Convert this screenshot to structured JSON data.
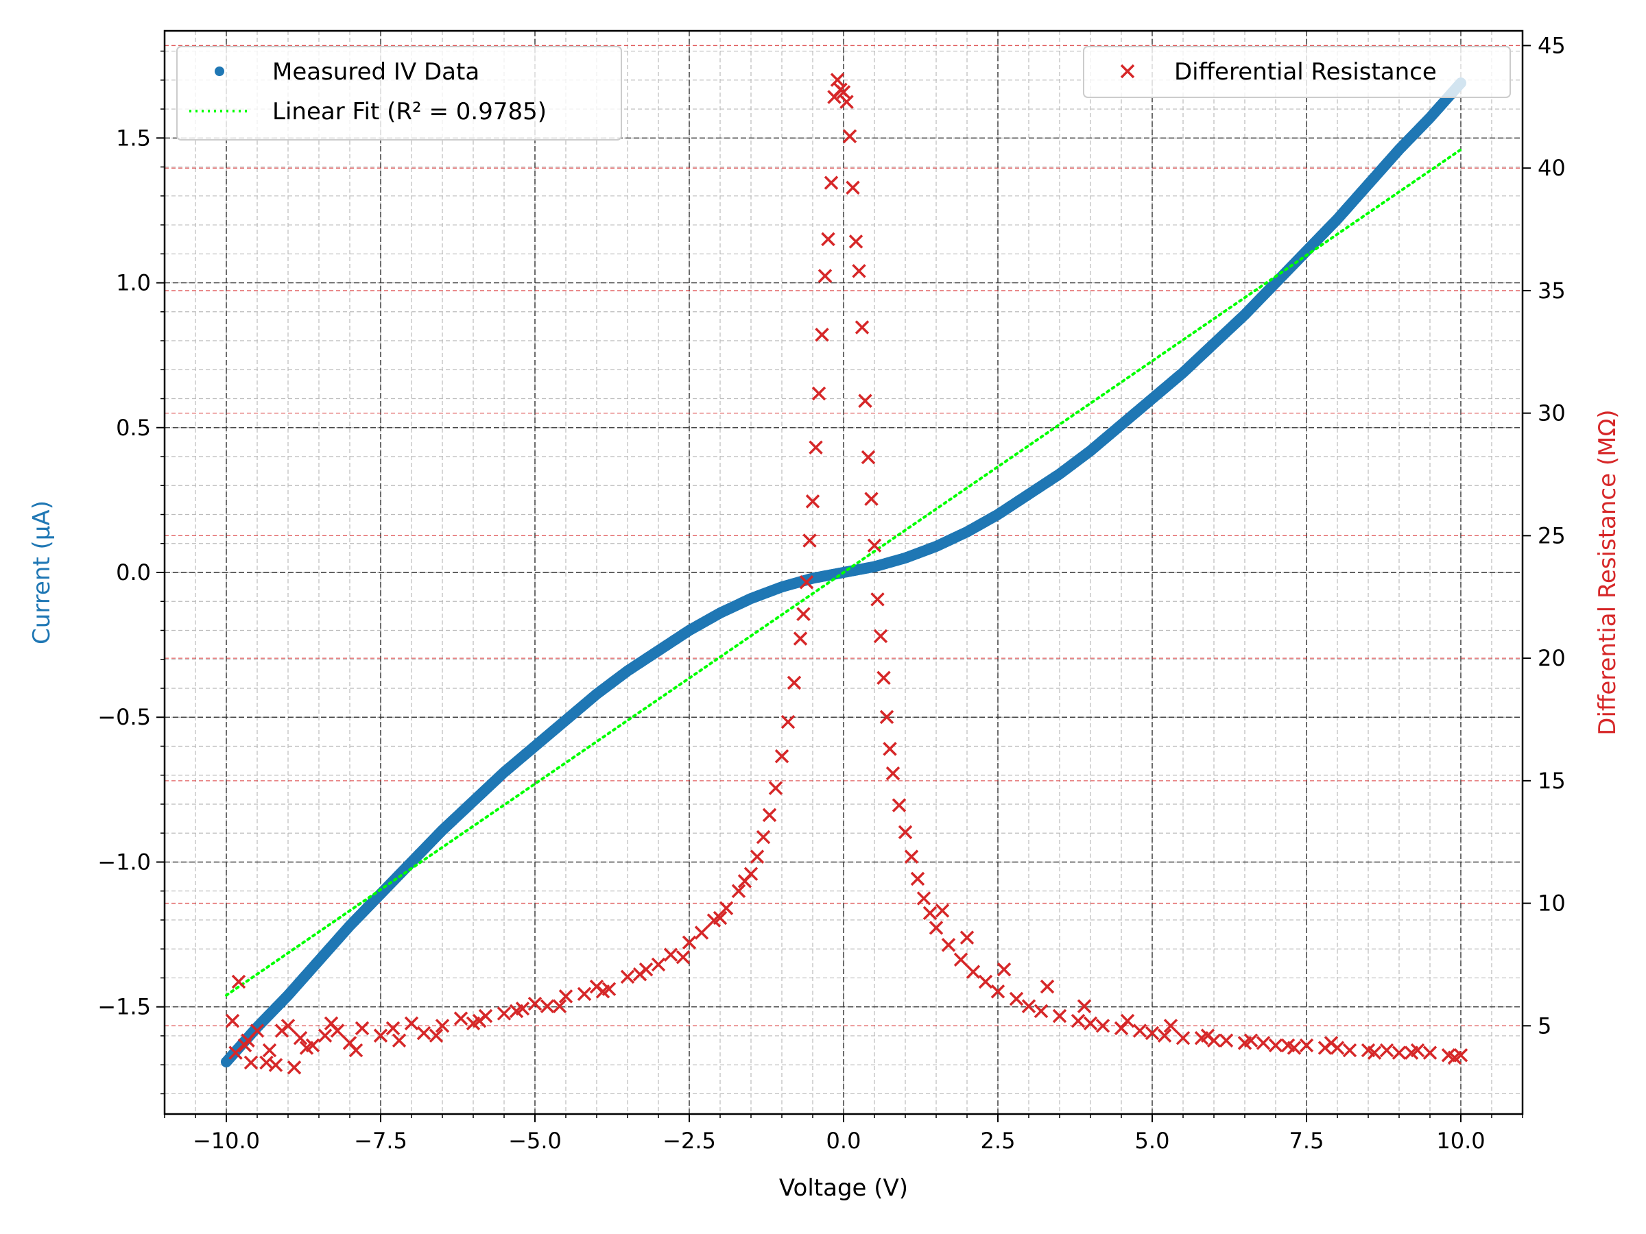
{
  "chart_data": {
    "type": "scatter",
    "xlabel": "Voltage (V)",
    "ylabel_left": "Current (μA)",
    "ylabel_right": "Differential Resistance (MΩ)",
    "xlim": [
      -11.0,
      11.0
    ],
    "ylim_left": [
      -1.87,
      1.87
    ],
    "ylim_right": [
      1.4,
      45.6
    ],
    "x_ticks": [
      -10.0,
      -7.5,
      -5.0,
      -2.5,
      0.0,
      2.5,
      5.0,
      7.5,
      10.0
    ],
    "x_tick_labels": [
      "−10.0",
      "−7.5",
      "−5.0",
      "−2.5",
      "0.0",
      "2.5",
      "5.0",
      "7.5",
      "10.0"
    ],
    "y_left_ticks": [
      -1.5,
      -1.0,
      -0.5,
      0.0,
      0.5,
      1.0,
      1.5
    ],
    "y_left_tick_labels": [
      "−1.5",
      "−1.0",
      "−0.5",
      "0.0",
      "0.5",
      "1.0",
      "1.5"
    ],
    "y_right_ticks": [
      5,
      10,
      15,
      20,
      25,
      30,
      35,
      40,
      45
    ],
    "y_right_tick_labels": [
      "5",
      "10",
      "15",
      "20",
      "25",
      "30",
      "35",
      "40",
      "45"
    ],
    "grid": true,
    "legend_left_position": "upper-left",
    "legend_right_position": "upper-right",
    "legend_labels": {
      "measured": "Measured IV Data",
      "fit": "Linear Fit (R² = 0.9785)",
      "resistance": "Differential Resistance"
    },
    "colors": {
      "left_axis": "#1f77b4",
      "right_axis": "#d62728",
      "measured": "#1f77b4",
      "fit": "#00ff00",
      "resistance": "#d62728"
    },
    "series": [
      {
        "name": "Measured IV Data",
        "axis": "left",
        "marker": "dot",
        "x": [
          -10.0,
          -9.5,
          -9.0,
          -8.5,
          -8.0,
          -7.5,
          -7.0,
          -6.5,
          -6.0,
          -5.5,
          -5.0,
          -4.5,
          -4.0,
          -3.5,
          -3.0,
          -2.5,
          -2.0,
          -1.5,
          -1.0,
          -0.5,
          0.0,
          0.5,
          1.0,
          1.5,
          2.0,
          2.5,
          3.0,
          3.5,
          4.0,
          4.5,
          5.0,
          5.5,
          6.0,
          6.5,
          7.0,
          7.5,
          8.0,
          8.5,
          9.0,
          9.5,
          10.0
        ],
        "y": [
          -1.69,
          -1.57,
          -1.46,
          -1.34,
          -1.22,
          -1.11,
          -1.0,
          -0.89,
          -0.79,
          -0.69,
          -0.6,
          -0.51,
          -0.42,
          -0.34,
          -0.27,
          -0.2,
          -0.14,
          -0.09,
          -0.05,
          -0.02,
          0.0,
          0.02,
          0.05,
          0.09,
          0.14,
          0.2,
          0.27,
          0.34,
          0.42,
          0.51,
          0.6,
          0.69,
          0.79,
          0.89,
          1.0,
          1.11,
          1.22,
          1.34,
          1.46,
          1.57,
          1.69
        ]
      },
      {
        "name": "Linear Fit (R² = 0.9785)",
        "axis": "left",
        "marker": "dotted-line",
        "x": [
          -10.0,
          10.0
        ],
        "y": [
          -1.46,
          1.46
        ]
      },
      {
        "name": "Differential Resistance",
        "axis": "right",
        "marker": "x",
        "x": [
          -9.9,
          -9.8,
          -9.7,
          -9.6,
          -9.5,
          -9.3,
          -9.2,
          -9.0,
          -8.8,
          -8.6,
          -8.4,
          -8.2,
          -8.0,
          -7.8,
          -7.5,
          -7.2,
          -7.0,
          -6.8,
          -6.5,
          -6.2,
          -6.0,
          -5.8,
          -5.5,
          -5.2,
          -5.0,
          -4.8,
          -4.5,
          -4.2,
          -4.0,
          -3.8,
          -3.5,
          -3.2,
          -3.0,
          -2.8,
          -2.5,
          -2.3,
          -2.1,
          -1.9,
          -1.7,
          -1.5,
          -1.4,
          -1.3,
          -1.2,
          -1.1,
          -1.0,
          -0.9,
          -0.8,
          -0.7,
          -0.65,
          -0.6,
          -0.55,
          -0.5,
          -0.45,
          -0.4,
          -0.35,
          -0.3,
          -0.25,
          -0.2,
          -0.15,
          -0.1,
          -0.05,
          0.0,
          0.05,
          0.1,
          0.15,
          0.2,
          0.25,
          0.3,
          0.35,
          0.4,
          0.45,
          0.5,
          0.55,
          0.6,
          0.65,
          0.7,
          0.75,
          0.8,
          0.9,
          1.0,
          1.1,
          1.2,
          1.3,
          1.4,
          1.5,
          1.7,
          1.9,
          2.1,
          2.3,
          2.5,
          2.8,
          3.0,
          3.2,
          3.5,
          3.8,
          4.0,
          4.2,
          4.5,
          4.8,
          5.0,
          5.2,
          5.5,
          5.8,
          6.0,
          6.2,
          6.5,
          6.8,
          7.0,
          7.2,
          7.5,
          7.8,
          8.0,
          8.2,
          8.5,
          8.8,
          9.0,
          9.2,
          9.5,
          9.8,
          10.0,
          -9.85,
          -9.65,
          -9.35,
          -9.1,
          -8.9,
          -8.7,
          -8.3,
          -7.9,
          -7.3,
          -6.6,
          -5.9,
          -5.3,
          -4.6,
          -3.9,
          -3.3,
          -2.6,
          -2.0,
          -1.6,
          1.6,
          2.0,
          2.6,
          3.3,
          3.9,
          4.6,
          5.3,
          5.9,
          6.6,
          7.3,
          7.9,
          8.6,
          9.3,
          9.9
        ],
        "y": [
          5.2,
          6.8,
          4.2,
          3.5,
          4.8,
          4.0,
          3.4,
          5.0,
          4.5,
          4.2,
          4.6,
          4.8,
          4.3,
          4.9,
          4.6,
          4.4,
          5.1,
          4.7,
          5.0,
          5.3,
          5.1,
          5.4,
          5.5,
          5.7,
          5.9,
          5.8,
          6.2,
          6.3,
          6.6,
          6.5,
          7.0,
          7.3,
          7.5,
          7.9,
          8.4,
          8.8,
          9.3,
          9.8,
          10.5,
          11.2,
          11.9,
          12.7,
          13.6,
          14.7,
          16.0,
          17.4,
          19.0,
          20.8,
          21.8,
          23.1,
          24.8,
          26.4,
          28.6,
          30.8,
          33.2,
          35.6,
          37.1,
          39.4,
          42.9,
          43.6,
          43.2,
          43.1,
          42.7,
          41.3,
          39.2,
          37.0,
          35.8,
          33.5,
          30.5,
          28.2,
          26.5,
          24.6,
          22.4,
          20.9,
          19.2,
          17.6,
          16.3,
          15.3,
          14.0,
          12.9,
          11.9,
          11.0,
          10.2,
          9.6,
          9.0,
          8.3,
          7.7,
          7.2,
          6.8,
          6.4,
          6.1,
          5.8,
          5.6,
          5.4,
          5.2,
          5.1,
          5.0,
          4.9,
          4.8,
          4.7,
          4.6,
          4.5,
          4.5,
          4.4,
          4.4,
          4.3,
          4.3,
          4.2,
          4.2,
          4.2,
          4.1,
          4.1,
          4.0,
          4.0,
          4.0,
          3.9,
          3.9,
          3.9,
          3.8,
          3.8,
          3.9,
          4.4,
          3.5,
          4.8,
          3.3,
          4.1,
          5.1,
          4.0,
          4.9,
          4.6,
          5.2,
          5.6,
          5.8,
          6.4,
          7.1,
          7.8,
          9.4,
          10.9,
          9.7,
          8.6,
          7.3,
          6.6,
          5.8,
          5.2,
          5.0,
          4.6,
          4.4,
          4.1,
          4.3,
          3.9,
          4.0,
          3.7
        ]
      }
    ]
  }
}
